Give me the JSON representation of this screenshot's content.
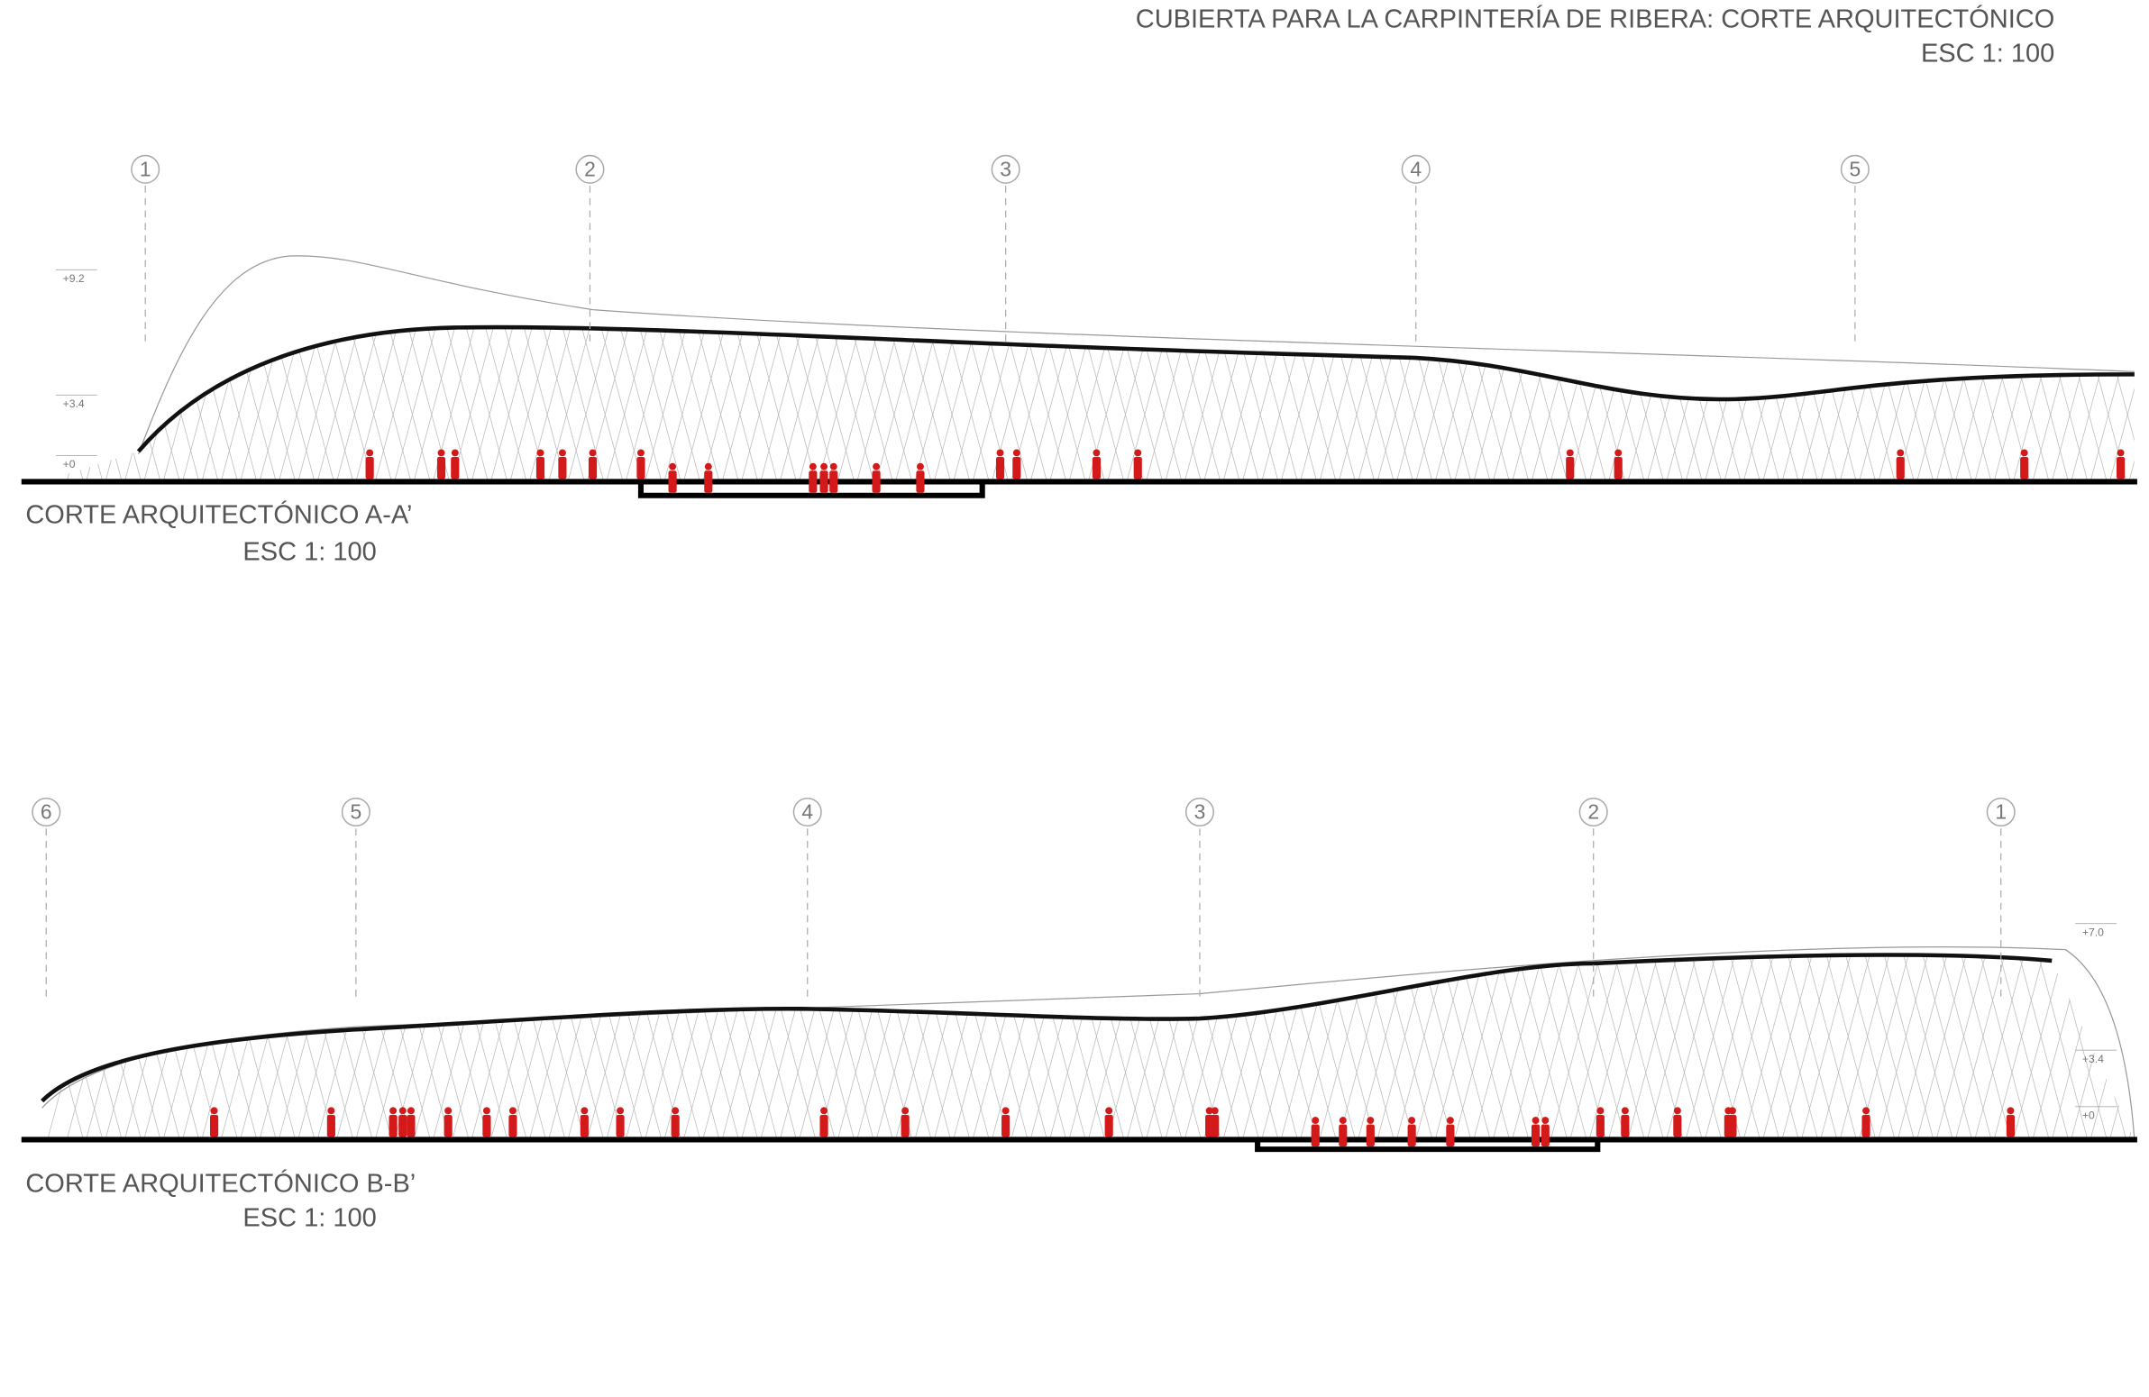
{
  "header": {
    "title": "CUBIERTA PARA LA CARPINTERÍA DE RIBERA: CORTE ARQUITECTÓNICO",
    "scale": "ESC 1: 100"
  },
  "sections": [
    {
      "label": "CORTE ARQUITECTÓNICO A-A’",
      "scale": "ESC 1: 100",
      "grid_axes": [
        "1",
        "2",
        "3",
        "4",
        "5"
      ],
      "levels": [
        "+9.2",
        "+3.4",
        "+0"
      ]
    },
    {
      "label": "CORTE ARQUITECTÓNICO B-B’",
      "scale": "ESC 1: 100",
      "grid_axes": [
        "6",
        "5",
        "4",
        "3",
        "2",
        "1"
      ],
      "levels": [
        "+7.0",
        "+3.4",
        "+0"
      ]
    }
  ]
}
